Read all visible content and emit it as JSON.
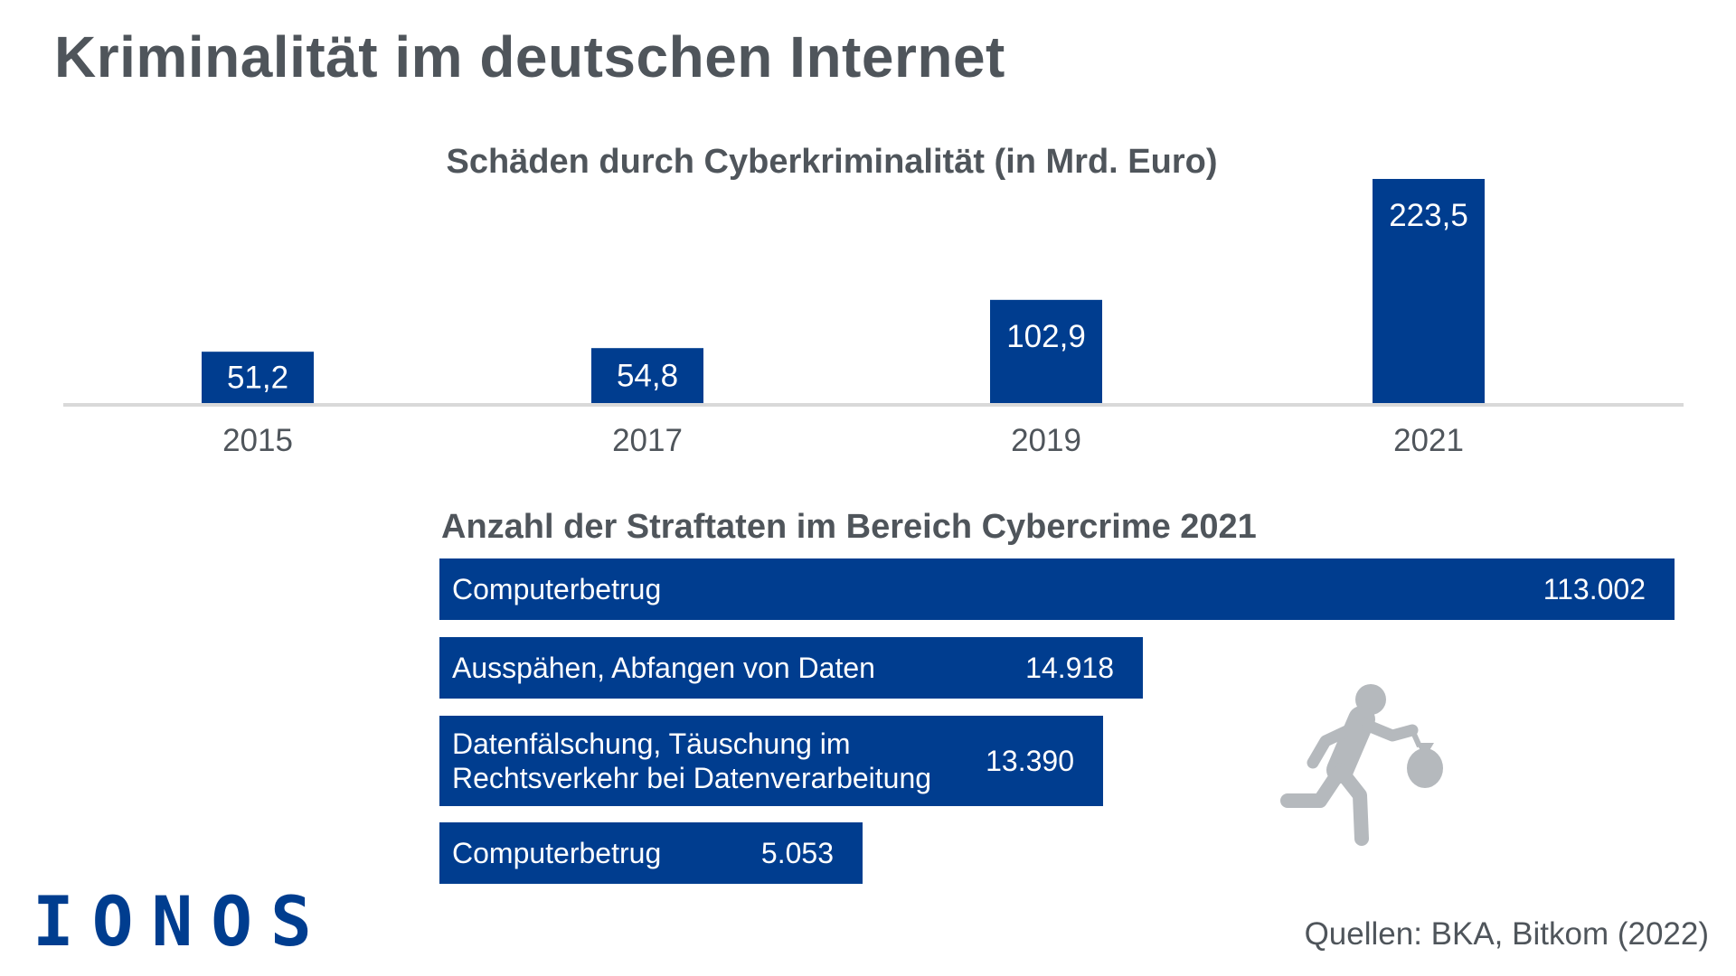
{
  "title": "Kriminalität im deutschen Internet",
  "source": "Quellen: BKA, Bitkom (2022)",
  "logo": "IONOS",
  "colors": {
    "bar": "#003d8f",
    "text": "#4f555b",
    "axis": "#d9d9d9",
    "icon": "#b5b9bd"
  },
  "icon": "running-thief-with-money-bag-icon",
  "chart_data": [
    {
      "type": "bar",
      "title": "Schäden durch Cyberkriminalität (in Mrd. Euro)",
      "categories": [
        "2015",
        "2017",
        "2019",
        "2021"
      ],
      "values": [
        51.2,
        54.8,
        102.9,
        223.5
      ],
      "value_labels": [
        "51,2",
        "54,8",
        "102,9",
        "223,5"
      ],
      "grid": false
    },
    {
      "type": "bar",
      "orientation": "horizontal",
      "title": "Anzahl der Straftaten im Bereich Cybercrime 2021",
      "categories": [
        "Computerbetrug",
        "Ausspähen, Abfangen von Daten",
        "Datenfälschung, Täuschung im Rechtsverkehr bei Datenverarbeitung",
        "Computerbetrug"
      ],
      "label_lines": [
        [
          "Computerbetrug"
        ],
        [
          "Ausspähen, Abfangen von Daten"
        ],
        [
          "Datenfälschung, Täuschung im",
          "Rechtsverkehr bei Datenverarbeitung"
        ],
        [
          "Computerbetrug"
        ]
      ],
      "values": [
        113002,
        14918,
        13390,
        5053
      ],
      "value_labels": [
        "113.002",
        "14.918",
        "13.390",
        "5.053"
      ]
    }
  ]
}
